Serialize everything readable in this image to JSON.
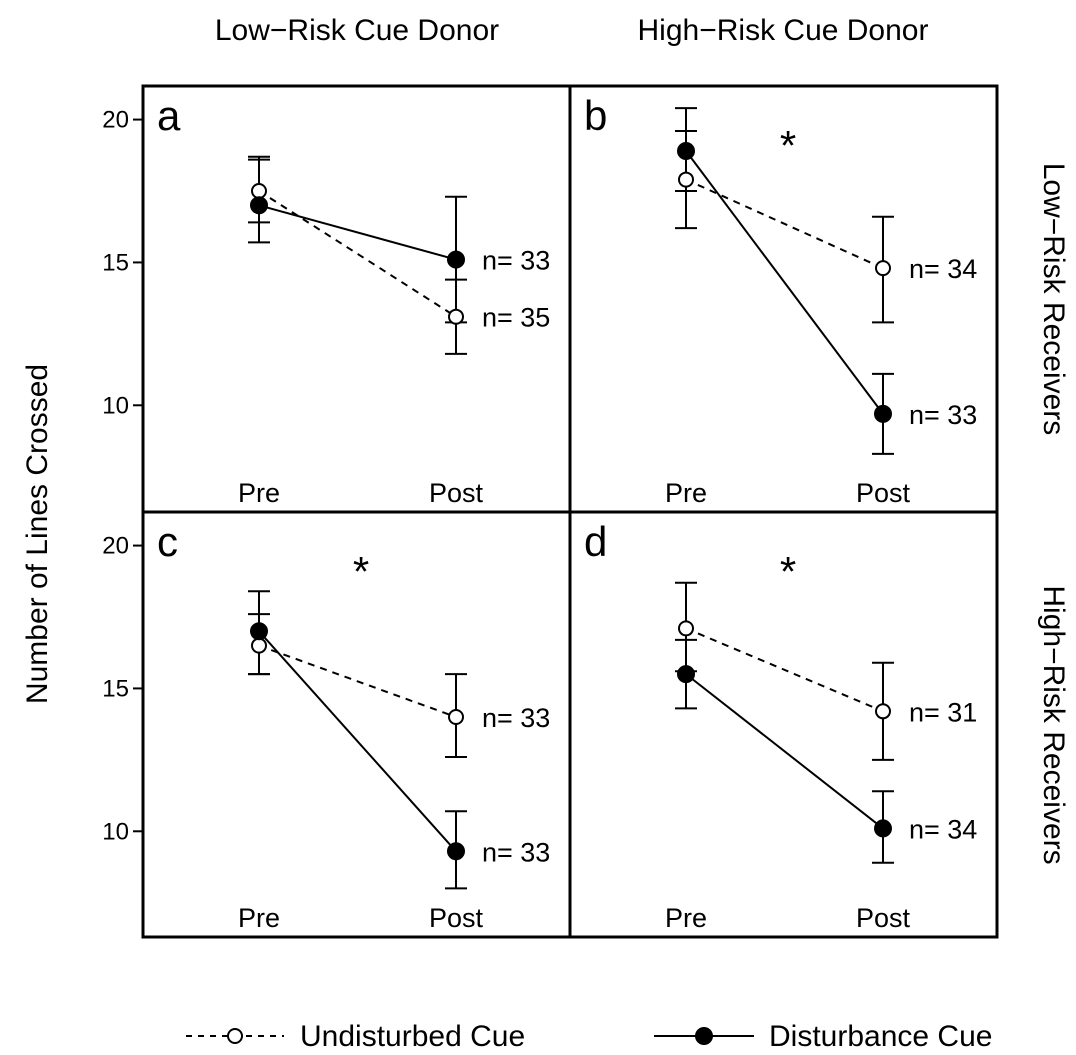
{
  "figure": {
    "ylabel": "Number of Lines Crossed",
    "col_headers": [
      "Low−Risk Cue Donor",
      "High−Risk Cue Donor"
    ],
    "row_headers": [
      "Low−Risk Receivers",
      "High−Risk Receivers"
    ]
  },
  "legend": {
    "undisturbed_label": "Undisturbed Cue",
    "disturbance_label": "Disturbance Cue"
  },
  "chart_data": [
    {
      "type": "line",
      "panel_label": "a",
      "significant": false,
      "significance_marker": "",
      "categories": [
        "Pre",
        "Post"
      ],
      "ylim": [
        7,
        21
      ],
      "yticks": [
        "10",
        "15",
        "20"
      ],
      "series": [
        {
          "name": "Undisturbed Cue",
          "values": [
            17.5,
            13.1
          ],
          "err_low": [
            16.4,
            11.8
          ],
          "err_high": [
            18.6,
            14.4
          ],
          "n_label": "n= 35"
        },
        {
          "name": "Disturbance Cue",
          "values": [
            17.0,
            15.1
          ],
          "err_low": [
            15.7,
            12.9
          ],
          "err_high": [
            18.7,
            17.3
          ],
          "n_label": "n= 33"
        }
      ]
    },
    {
      "type": "line",
      "panel_label": "b",
      "significant": true,
      "significance_marker": "*",
      "categories": [
        "Pre",
        "Post"
      ],
      "ylim": [
        7,
        21
      ],
      "yticks": [
        "10",
        "15",
        "20"
      ],
      "series": [
        {
          "name": "Undisturbed Cue",
          "values": [
            17.9,
            14.8
          ],
          "err_low": [
            16.2,
            12.9
          ],
          "err_high": [
            19.6,
            16.6
          ],
          "n_label": "n= 34"
        },
        {
          "name": "Disturbance Cue",
          "values": [
            18.9,
            9.7
          ],
          "err_low": [
            17.5,
            8.3
          ],
          "err_high": [
            20.4,
            11.1
          ],
          "n_label": "n= 33"
        }
      ]
    },
    {
      "type": "line",
      "panel_label": "c",
      "significant": true,
      "significance_marker": "*",
      "categories": [
        "Pre",
        "Post"
      ],
      "ylim": [
        7,
        21
      ],
      "yticks": [
        "10",
        "15",
        "20"
      ],
      "series": [
        {
          "name": "Undisturbed Cue",
          "values": [
            16.5,
            14.0
          ],
          "err_low": [
            15.5,
            12.6
          ],
          "err_high": [
            17.6,
            15.5
          ],
          "n_label": "n= 33"
        },
        {
          "name": "Disturbance Cue",
          "values": [
            17.0,
            9.3
          ],
          "err_low": [
            15.5,
            8.0
          ],
          "err_high": [
            18.4,
            10.7
          ],
          "n_label": "n= 33"
        }
      ]
    },
    {
      "type": "line",
      "panel_label": "d",
      "significant": true,
      "significance_marker": "*",
      "categories": [
        "Pre",
        "Post"
      ],
      "ylim": [
        7,
        21
      ],
      "yticks": [
        "10",
        "15",
        "20"
      ],
      "series": [
        {
          "name": "Undisturbed Cue",
          "values": [
            17.1,
            14.2
          ],
          "err_low": [
            15.6,
            12.5
          ],
          "err_high": [
            18.7,
            15.9
          ],
          "n_label": "n= 31"
        },
        {
          "name": "Disturbance Cue",
          "values": [
            15.5,
            10.1
          ],
          "err_low": [
            14.3,
            8.9
          ],
          "err_high": [
            16.7,
            11.4
          ],
          "n_label": "n= 34"
        }
      ]
    }
  ]
}
